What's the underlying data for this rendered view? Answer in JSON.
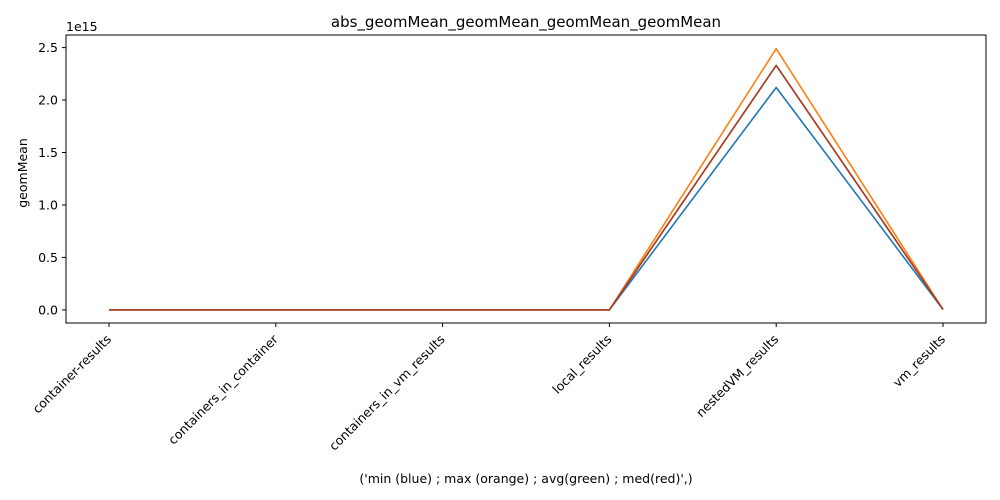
{
  "chart_data": {
    "type": "line",
    "title": "abs_geomMean_geomMean_geomMean_geomMean",
    "xlabel": "('min (blue) ; max (orange) ; avg(green) ; med(red)',)",
    "ylabel": "geomMean",
    "offset_text": "1e15",
    "categories": [
      "container-results",
      "containers_in_container",
      "containers_in_vm_results",
      "local_results",
      "nestedVM_results",
      "vm_results"
    ],
    "yticks": [
      0.0,
      0.5,
      1.0,
      1.5,
      2.0,
      2.5
    ],
    "ytick_labels": [
      "0.0",
      "0.5",
      "1.0",
      "1.5",
      "2.0",
      "2.5"
    ],
    "ylim": [
      -0.125,
      2.62
    ],
    "grid": false,
    "series": [
      {
        "values": [
          0,
          0,
          0,
          0,
          2.12,
          0.004
        ],
        "color": "#1f77b4"
      },
      {
        "values": [
          0,
          0,
          0,
          0,
          2.49,
          0.004
        ],
        "color": "#ff7f0e"
      },
      {
        "values": [
          0,
          0,
          0,
          0,
          2.33,
          0.004
        ],
        "color": "#2ca02c"
      },
      {
        "values": [
          0,
          0,
          0,
          0,
          2.33,
          0.004
        ],
        "color": "#d62728"
      }
    ],
    "overlap_color": "#b5392a"
  }
}
